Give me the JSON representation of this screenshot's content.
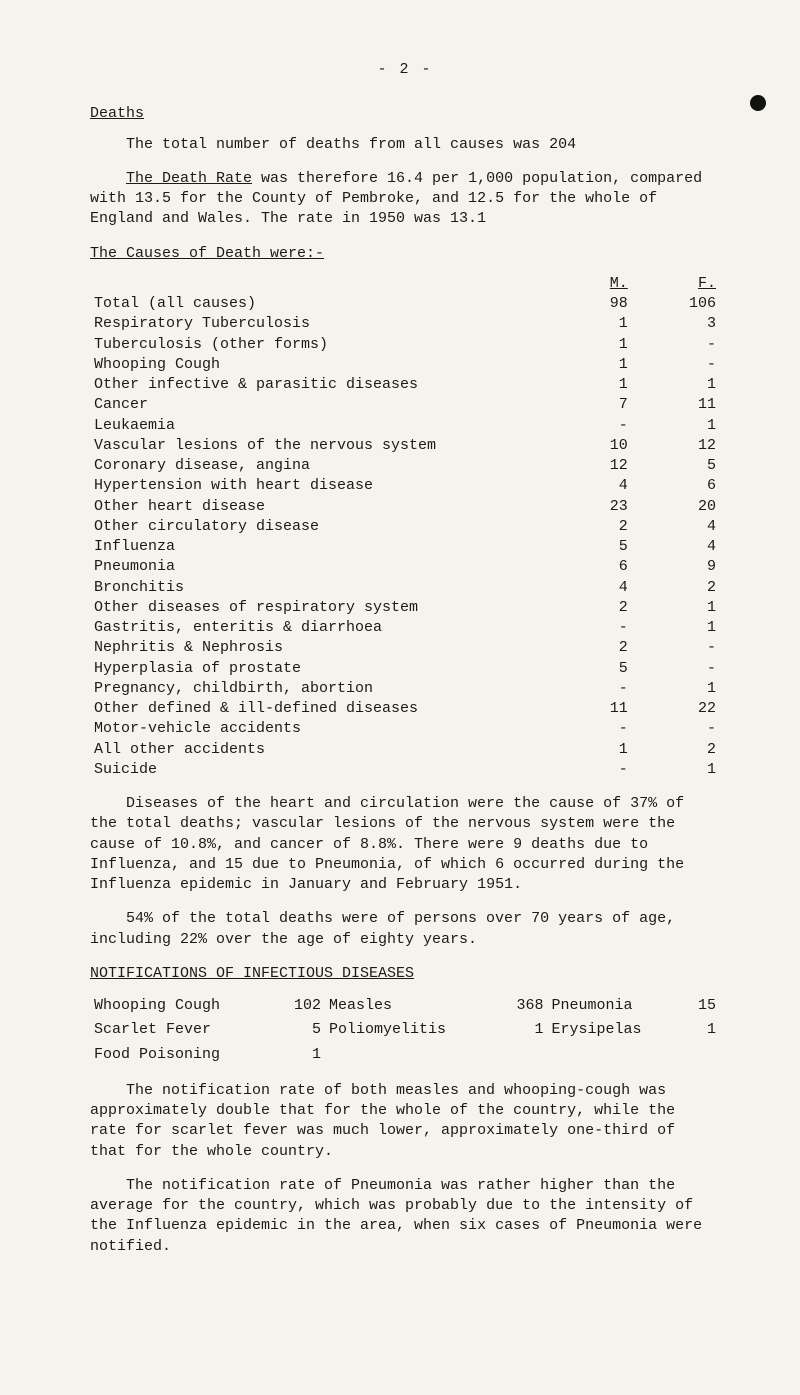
{
  "page_number_label": "- 2 -",
  "deaths_heading": "Deaths",
  "total_deaths_para": "The total number of deaths from all causes was 204",
  "death_rate_span_u": "The Death Rate",
  "death_rate_rest": " was therefore 16.4 per 1,000 population, compared with 13.5 for the County of Pembroke, and 12.5 for the whole of England and Wales.  The rate in 1950 was 13.1",
  "causes_heading": "The Causes of Death were:-",
  "col_m": "M.",
  "col_f": "F.",
  "col_m_u_style": "text-decoration: underline;",
  "col_f_u_style": "text-decoration: underline;",
  "rows": [
    {
      "label": "Total (all causes)",
      "m": "98",
      "f": "106"
    },
    {
      "label": "Respiratory Tuberculosis",
      "m": "1",
      "f": "3"
    },
    {
      "label": "Tuberculosis (other forms)",
      "m": "1",
      "f": "-"
    },
    {
      "label": "Whooping Cough",
      "m": "1",
      "f": "-"
    },
    {
      "label": "Other infective & parasitic diseases",
      "m": "1",
      "f": "1"
    },
    {
      "label": "Cancer",
      "m": "7",
      "f": "11"
    },
    {
      "label": "Leukaemia",
      "m": "-",
      "f": "1"
    },
    {
      "label": "Vascular lesions of the nervous system",
      "m": "10",
      "f": "12"
    },
    {
      "label": "Coronary disease, angina",
      "m": "12",
      "f": "5"
    },
    {
      "label": "Hypertension with heart disease",
      "m": "4",
      "f": "6"
    },
    {
      "label": "Other heart disease",
      "m": "23",
      "f": "20"
    },
    {
      "label": "Other circulatory disease",
      "m": "2",
      "f": "4"
    },
    {
      "label": "Influenza",
      "m": "5",
      "f": "4"
    },
    {
      "label": "Pneumonia",
      "m": "6",
      "f": "9"
    },
    {
      "label": "Bronchitis",
      "m": "4",
      "f": "2"
    },
    {
      "label": "Other diseases of respiratory system",
      "m": "2",
      "f": "1"
    },
    {
      "label": "Gastritis, enteritis & diarrhoea",
      "m": "-",
      "f": "1"
    },
    {
      "label": "Nephritis & Nephrosis",
      "m": "2",
      "f": "-"
    },
    {
      "label": "Hyperplasia of prostate",
      "m": "5",
      "f": "-"
    },
    {
      "label": "Pregnancy, childbirth, abortion",
      "m": "-",
      "f": "1"
    },
    {
      "label": "Other defined & ill-defined diseases",
      "m": "11",
      "f": "22"
    },
    {
      "label": "Motor-vehicle accidents",
      "m": "-",
      "f": "-"
    },
    {
      "label": "All other accidents",
      "m": "1",
      "f": "2"
    },
    {
      "label": "Suicide",
      "m": "-",
      "f": "1"
    }
  ],
  "diseases_para": "Diseases of the heart and circulation were the cause of 37% of the total deaths; vascular lesions of the nervous system were the cause of 10.8%, and cancer of 8.8%.  There were 9 deaths due to Influenza, and 15 due to Pneumonia, of which 6 occurred during the Influenza epidemic in January and February 1951.",
  "age_para": "54% of the total deaths were of persons over 70 years of age, including 22% over the age of eighty years.",
  "notif_heading": "NOTIFICATIONS OF INFECTIOUS DISEASES",
  "notif_rows": [
    {
      "a": "Whooping Cough",
      "an": "102",
      "b": "Measles",
      "bn": "368",
      "c": "Pneumonia",
      "cn": "15"
    },
    {
      "a": "Scarlet Fever",
      "an": "5",
      "b": "Poliomyelitis",
      "bn": "1",
      "c": "Erysipelas",
      "cn": "1"
    },
    {
      "a": "Food Poisoning",
      "an": "1",
      "b": "",
      "bn": "",
      "c": "",
      "cn": ""
    }
  ],
  "notif_para1": "The notification rate of both measles and whooping-cough was approximately double that for the whole of the country, while the rate for scarlet fever was much lower, approximately one-third of that for the whole country.",
  "notif_para2": "The notification rate of Pneumonia was rather higher than the average for the country, which was probably due to the intensity of the Influenza epidemic in the area, when six cases of Pneumonia were notified."
}
